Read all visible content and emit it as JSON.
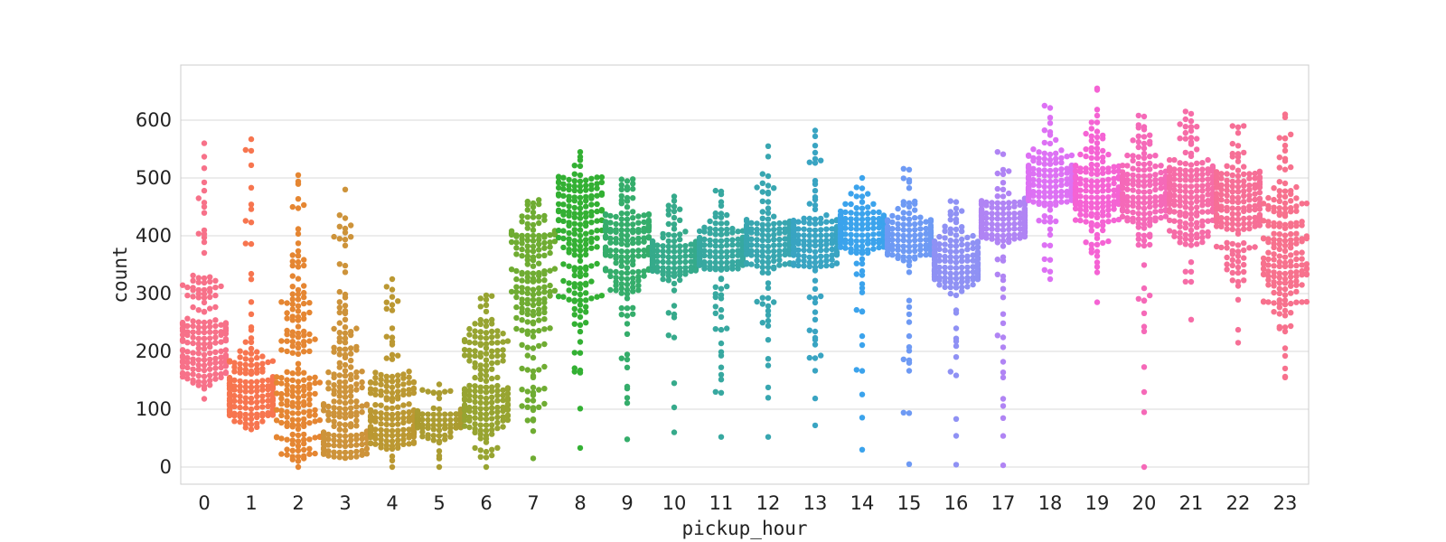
{
  "chart_data": {
    "type": "scatter",
    "subtype": "swarm",
    "title": "",
    "xlabel": "pickup_hour",
    "ylabel": "count",
    "ylim": [
      -30,
      690
    ],
    "yticks": [
      0,
      100,
      200,
      300,
      400,
      500,
      600
    ],
    "grid": "horizontal",
    "categories": [
      "0",
      "1",
      "2",
      "3",
      "4",
      "5",
      "6",
      "7",
      "8",
      "9",
      "10",
      "11",
      "12",
      "13",
      "14",
      "15",
      "16",
      "17",
      "18",
      "19",
      "20",
      "21",
      "22",
      "23"
    ],
    "colors": [
      "#f77189",
      "#f7754f",
      "#e58632",
      "#cd933a",
      "#bb9832",
      "#ab9c31",
      "#97a431",
      "#6fac32",
      "#33b033",
      "#35ad6b",
      "#36aa8b",
      "#37a8a0",
      "#38a6b0",
      "#39a4c2",
      "#3ba3ec",
      "#6e9af4",
      "#8f91f4",
      "#b084f4",
      "#dd71f4",
      "#f563d4",
      "#f569b8",
      "#f66ca7",
      "#f66f96",
      "#f7718d"
    ],
    "series": [
      {
        "category": "0",
        "median": 200,
        "q1": 160,
        "q3": 330,
        "min": 118,
        "max": 560
      },
      {
        "category": "1",
        "median": 120,
        "q1": 95,
        "q3": 200,
        "min": 65,
        "max": 567
      },
      {
        "category": "2",
        "median": 85,
        "q1": 70,
        "q3": 320,
        "min": 0,
        "max": 505
      },
      {
        "category": "3",
        "median": 75,
        "q1": 50,
        "q3": 250,
        "min": 18,
        "max": 480
      },
      {
        "category": "4",
        "median": 70,
        "q1": 55,
        "q3": 160,
        "min": 0,
        "max": 325
      },
      {
        "category": "5",
        "median": 80,
        "q1": 65,
        "q3": 95,
        "min": 0,
        "max": 143
      },
      {
        "category": "6",
        "median": 100,
        "q1": 85,
        "q3": 220,
        "min": 0,
        "max": 297
      },
      {
        "category": "7",
        "median": 360,
        "q1": 140,
        "q3": 400,
        "min": 15,
        "max": 462
      },
      {
        "category": "8",
        "median": 440,
        "q1": 260,
        "q3": 480,
        "min": 33,
        "max": 545
      },
      {
        "category": "9",
        "median": 400,
        "q1": 300,
        "q3": 430,
        "min": 48,
        "max": 498
      },
      {
        "category": "10",
        "median": 360,
        "q1": 330,
        "q3": 390,
        "min": 60,
        "max": 468
      },
      {
        "category": "11",
        "median": 375,
        "q1": 340,
        "q3": 410,
        "min": 52,
        "max": 478
      },
      {
        "category": "12",
        "median": 390,
        "q1": 345,
        "q3": 430,
        "min": 52,
        "max": 555
      },
      {
        "category": "13",
        "median": 390,
        "q1": 345,
        "q3": 430,
        "min": 72,
        "max": 582
      },
      {
        "category": "14",
        "median": 410,
        "q1": 370,
        "q3": 440,
        "min": 30,
        "max": 500
      },
      {
        "category": "15",
        "median": 395,
        "q1": 360,
        "q3": 430,
        "min": 5,
        "max": 516
      },
      {
        "category": "16",
        "median": 350,
        "q1": 310,
        "q3": 390,
        "min": 4,
        "max": 460
      },
      {
        "category": "17",
        "median": 420,
        "q1": 390,
        "q3": 460,
        "min": 3,
        "max": 545
      },
      {
        "category": "18",
        "median": 500,
        "q1": 450,
        "q3": 540,
        "min": 325,
        "max": 625
      },
      {
        "category": "19",
        "median": 490,
        "q1": 420,
        "q3": 540,
        "min": 285,
        "max": 655
      },
      {
        "category": "20",
        "median": 470,
        "q1": 380,
        "q3": 530,
        "min": 0,
        "max": 608
      },
      {
        "category": "21",
        "median": 480,
        "q1": 400,
        "q3": 530,
        "min": 255,
        "max": 615
      },
      {
        "category": "22",
        "median": 460,
        "q1": 360,
        "q3": 510,
        "min": 215,
        "max": 590
      },
      {
        "category": "23",
        "median": 370,
        "q1": 280,
        "q3": 470,
        "min": 155,
        "max": 610
      }
    ]
  }
}
